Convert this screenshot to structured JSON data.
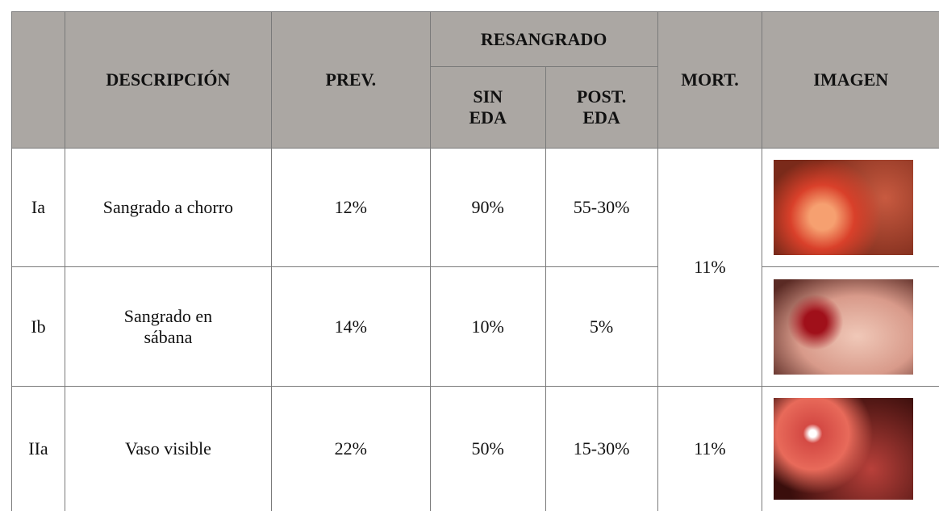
{
  "table": {
    "header": {
      "description": "DESCRIPCIÓN",
      "prev": "PREV.",
      "resangrado": "RESANGRADO",
      "sin_eda": [
        "SIN",
        "EDA"
      ],
      "post_eda": [
        "POST.",
        "EDA"
      ],
      "mort": "MORT.",
      "imagen": "IMAGEN"
    },
    "rows": [
      [
        "Ia",
        "Sangrado a chorro",
        "12%",
        "90%",
        "55-30%"
      ],
      [
        "Ib",
        "Sangrado en sábana",
        "14%",
        "10%",
        "5%"
      ],
      [
        "IIa",
        "Vaso visible",
        "22%",
        "50%",
        "15-30%"
      ]
    ],
    "mort": [
      "11%",
      "11%"
    ]
  }
}
